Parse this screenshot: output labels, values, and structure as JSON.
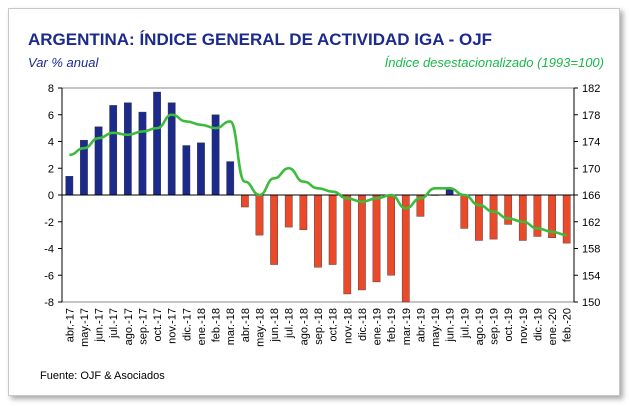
{
  "title": "ARGENTINA: ÍNDICE GENERAL DE ACTIVIDAD IGA - OJF",
  "left_subtitle": "Var % anual",
  "right_subtitle": "Índice desestacionalizado (1993=100)",
  "source": "Fuente: OJF & Asociados",
  "colors": {
    "title": "#1c2a8c",
    "positive_bar": "#1c2a8c",
    "negative_bar": "#ea4a2a",
    "line": "#3dbb3d",
    "right_subtitle": "#19b84a"
  },
  "chart_data": {
    "type": "bar",
    "categories": [
      "abr.-17",
      "may.-17",
      "jun.-17",
      "jul.-17",
      "ago.-17",
      "sep.-17",
      "oct.-17",
      "nov.-17",
      "dic.-17",
      "ene.-18",
      "feb.-18",
      "mar.-18",
      "abr.-18",
      "may.-18",
      "jun.-18",
      "jul.-18",
      "ago.-18",
      "sep.-18",
      "oct.-18",
      "nov.-18",
      "dic.-18",
      "ene.-19",
      "feb.-19",
      "mar.-19",
      "abr.-19",
      "may.-19",
      "jun.-19",
      "jul.-19",
      "ago.-19",
      "sep.-19",
      "oct.-19",
      "nov.-19",
      "dic.-19",
      "ene.-20",
      "feb.-20"
    ],
    "series": [
      {
        "axis": "left",
        "type": "bar",
        "values": [
          1.4,
          4.1,
          5.1,
          6.7,
          6.9,
          6.2,
          7.7,
          6.9,
          3.7,
          3.9,
          6.0,
          2.5,
          -0.9,
          -3.0,
          -5.2,
          -2.4,
          -2.6,
          -5.4,
          -5.2,
          -7.4,
          -7.1,
          -6.5,
          -6.0,
          -8.0,
          -1.6,
          0.0,
          0.5,
          -2.5,
          -3.4,
          -3.3,
          -2.2,
          -3.4,
          -3.1,
          -3.2,
          -3.6
        ]
      },
      {
        "axis": "right",
        "type": "line",
        "values": [
          172.0,
          173.0,
          174.5,
          175.3,
          175.0,
          175.5,
          176.0,
          178.0,
          177.0,
          176.5,
          176.0,
          177.0,
          168.0,
          166.0,
          168.5,
          170.0,
          168.0,
          167.0,
          166.5,
          165.5,
          165.0,
          165.5,
          166.0,
          164.0,
          165.5,
          167.0,
          167.0,
          166.0,
          164.5,
          163.5,
          162.5,
          162.0,
          161.0,
          160.5,
          160.0
        ]
      }
    ],
    "left_axis": {
      "ylim": [
        -8,
        8
      ],
      "ticks": [
        -8,
        -6,
        -4,
        -2,
        0,
        2,
        4,
        6,
        8
      ]
    },
    "right_axis": {
      "ylim": [
        150,
        182
      ],
      "ticks": [
        150,
        154,
        158,
        162,
        166,
        170,
        174,
        178,
        182
      ]
    }
  }
}
